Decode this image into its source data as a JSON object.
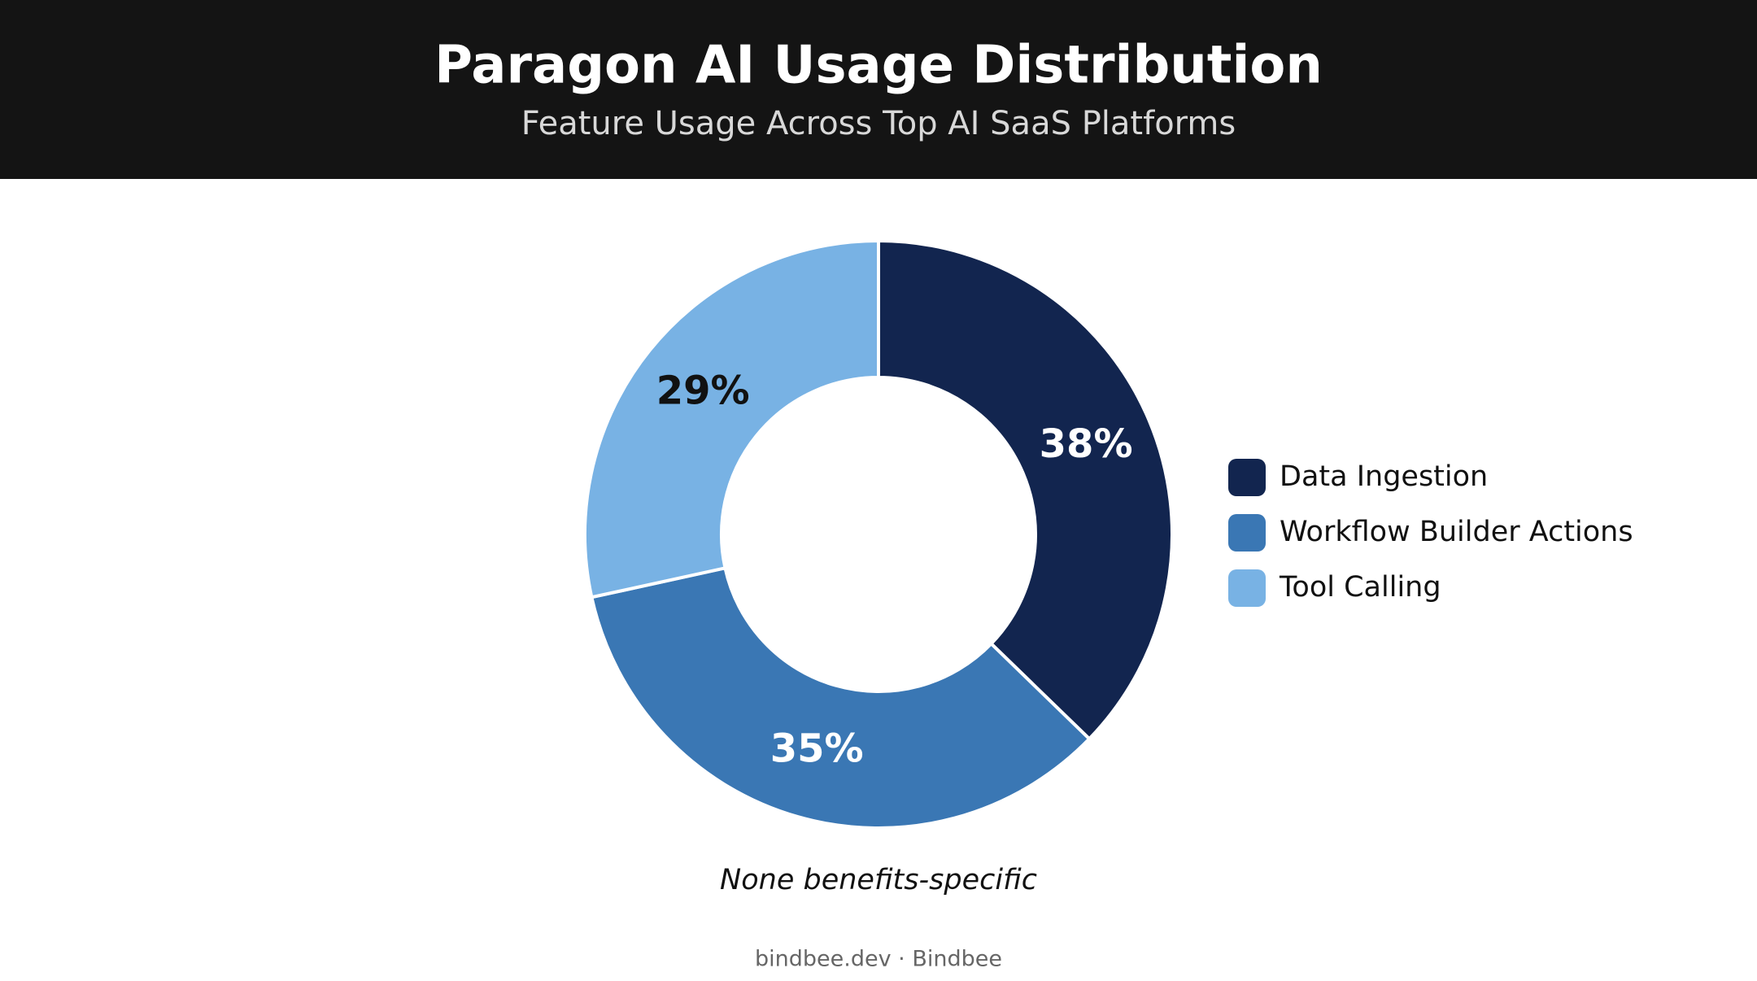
{
  "chart_data": {
    "type": "pie",
    "title": "Paragon AI Usage Distribution",
    "subtitle": "Feature Usage Across Top AI SaaS Platforms",
    "categories": [
      "Data Ingestion",
      "Workflow Builder Actions",
      "Tool Calling"
    ],
    "values": [
      38,
      35,
      29
    ],
    "value_labels": [
      "38%",
      "35%",
      "29%"
    ],
    "colors": [
      "#12254f",
      "#3a77b4",
      "#78b2e4"
    ],
    "label_colors": [
      "#ffffff",
      "#ffffff",
      "#111111"
    ],
    "donut": true,
    "legend": "right",
    "annotation": "None benefits-specific",
    "footer": "bindbee.dev · Bindbee"
  }
}
